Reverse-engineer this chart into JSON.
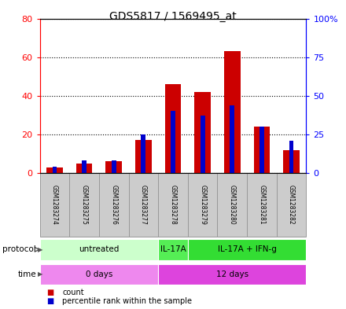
{
  "title": "GDS5817 / 1569495_at",
  "samples": [
    "GSM1283274",
    "GSM1283275",
    "GSM1283276",
    "GSM1283277",
    "GSM1283278",
    "GSM1283279",
    "GSM1283280",
    "GSM1283281",
    "GSM1283282"
  ],
  "count_values": [
    3,
    5,
    6,
    17,
    46,
    42,
    63,
    24,
    12
  ],
  "percentile_values": [
    4,
    8,
    8,
    25,
    40,
    37,
    44,
    30,
    21
  ],
  "ylim_left": [
    0,
    80
  ],
  "ylim_right": [
    0,
    100
  ],
  "yticks_left": [
    0,
    20,
    40,
    60,
    80
  ],
  "yticks_right": [
    0,
    25,
    50,
    75,
    100
  ],
  "ytick_labels_left": [
    "0",
    "20",
    "40",
    "60",
    "80"
  ],
  "ytick_labels_right": [
    "0",
    "25",
    "50",
    "75",
    "100%"
  ],
  "count_color": "#cc0000",
  "percentile_color": "#0000cc",
  "protocol_groups": [
    {
      "label": "untreated",
      "start": 0,
      "end": 3,
      "color": "#ccffcc"
    },
    {
      "label": "IL-17A",
      "start": 4,
      "end": 4,
      "color": "#55ee55"
    },
    {
      "label": "IL-17A + IFN-g",
      "start": 5,
      "end": 8,
      "color": "#33dd33"
    }
  ],
  "time_groups": [
    {
      "label": "0 days",
      "start": 0,
      "end": 3,
      "color": "#ee88ee"
    },
    {
      "label": "12 days",
      "start": 4,
      "end": 8,
      "color": "#dd44dd"
    }
  ],
  "sample_bg_color": "#cccccc",
  "sample_border_color": "#999999",
  "legend_count_label": "count",
  "legend_percentile_label": "percentile rank within the sample"
}
